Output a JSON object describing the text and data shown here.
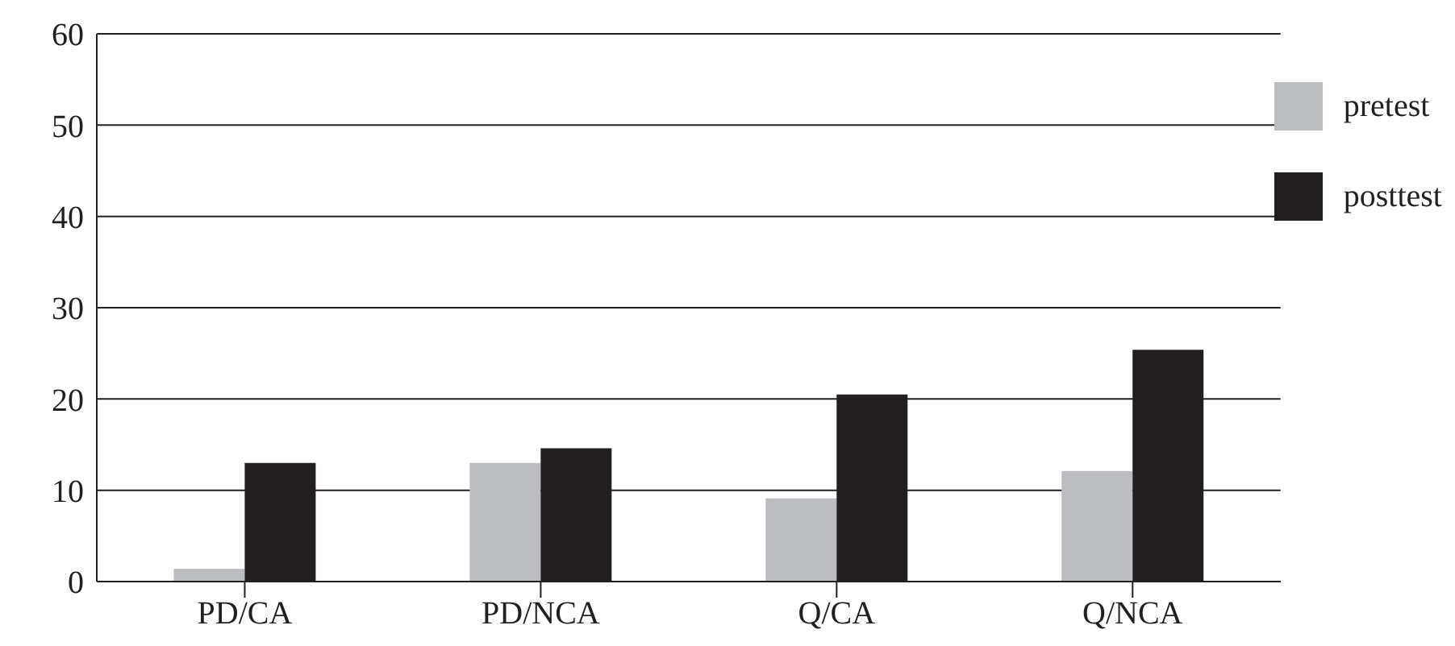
{
  "chart_data": {
    "type": "bar",
    "categories": [
      "PD/CA",
      "PD/NCA",
      "Q/CA",
      "Q/NCA"
    ],
    "series": [
      {
        "name": "pretest",
        "color": "#bcbdc0",
        "values": [
          1.4,
          13.0,
          9.1,
          12.1
        ]
      },
      {
        "name": "posttest",
        "color": "#231f20",
        "values": [
          13.0,
          14.6,
          20.5,
          25.4
        ]
      }
    ],
    "ylim": [
      0,
      60
    ],
    "yticks": [
      0,
      10,
      20,
      30,
      40,
      50,
      60
    ],
    "grid": "y",
    "legend": "top right"
  }
}
